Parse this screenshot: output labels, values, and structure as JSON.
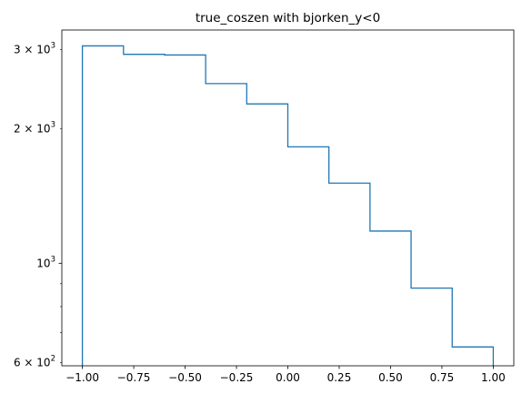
{
  "chart_data": {
    "type": "histogram-step",
    "title": "true_coszen with bjorken_y<0",
    "xlabel": "",
    "ylabel": "",
    "x_scale": "linear",
    "y_scale": "log",
    "xlim": [
      -1.1,
      1.1
    ],
    "ylim": [
      590,
      3320
    ],
    "bin_edges": [
      -1.0,
      -0.8,
      -0.6,
      -0.4,
      -0.2,
      0.0,
      0.2,
      0.4,
      0.6,
      0.8,
      1.0
    ],
    "counts": [
      3060,
      2930,
      2920,
      2520,
      2270,
      1820,
      1510,
      1180,
      880,
      650
    ],
    "color": "#1f77b4",
    "x_ticks": [
      {
        "value": -1.0,
        "label": "−1.00"
      },
      {
        "value": -0.75,
        "label": "−0.75"
      },
      {
        "value": -0.5,
        "label": "−0.50"
      },
      {
        "value": -0.25,
        "label": "−0.25"
      },
      {
        "value": 0.0,
        "label": "0.00"
      },
      {
        "value": 0.25,
        "label": "0.25"
      },
      {
        "value": 0.5,
        "label": "0.50"
      },
      {
        "value": 0.75,
        "label": "0.75"
      },
      {
        "value": 1.0,
        "label": "1.00"
      }
    ],
    "y_major_ticks": [
      {
        "value": 1000,
        "mantissa": "",
        "exponent": "3",
        "base": "10"
      }
    ],
    "y_minor_ticks": [
      {
        "value": 600,
        "mantissa": "6",
        "exponent": "2",
        "base": "10"
      },
      {
        "value": 700
      },
      {
        "value": 800
      },
      {
        "value": 900
      },
      {
        "value": 2000,
        "mantissa": "2",
        "exponent": "3",
        "base": "10"
      },
      {
        "value": 3000,
        "mantissa": "3",
        "exponent": "3",
        "base": "10"
      }
    ],
    "times_sign": "×",
    "grid": false,
    "legend": "none"
  }
}
